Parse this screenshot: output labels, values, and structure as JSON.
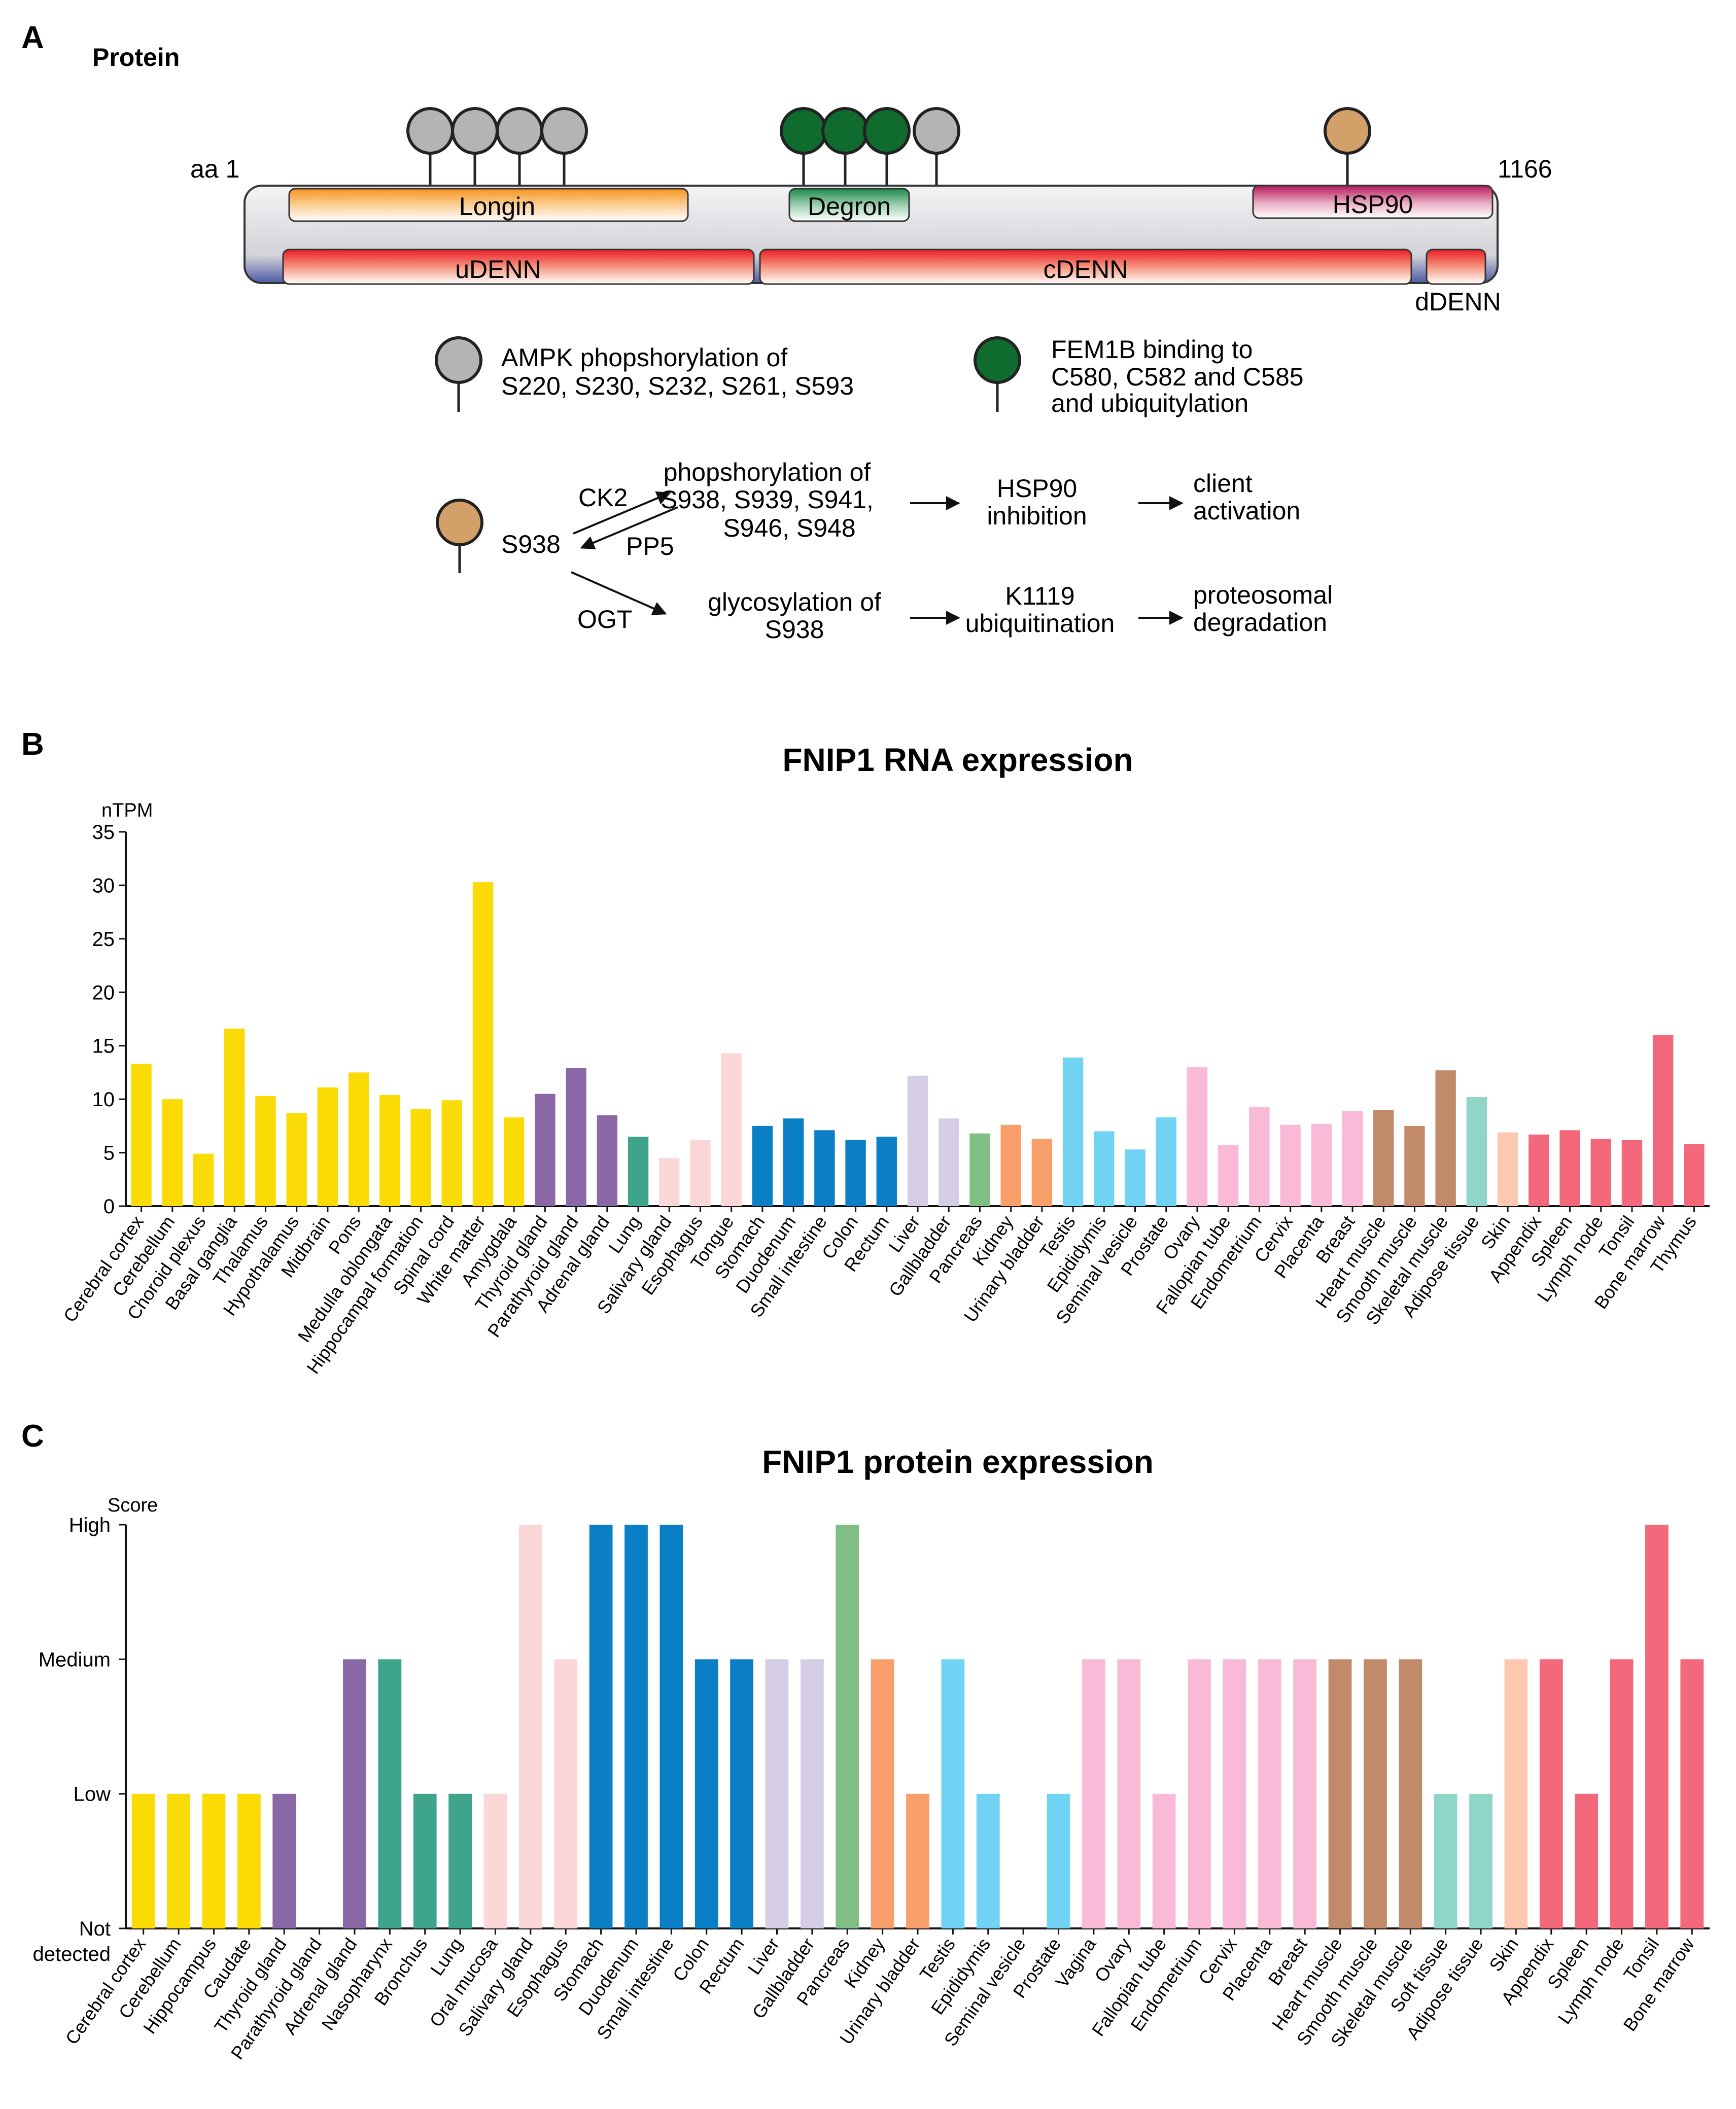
{
  "panelA": {
    "label": "A",
    "heading": "Protein",
    "aa_start": "aa 1",
    "aa_end": "1166",
    "domains": {
      "longin": "Longin",
      "degron": "Degron",
      "hsp90": "HSP90",
      "udenn": "uDENN",
      "cdenn": "cDENN",
      "ddenn": "dDENN"
    },
    "legend": {
      "ampk_1": "AMPK phopshorylation of",
      "ampk_2": "S220, S230, S232, S261, S593",
      "fem1b_1": "FEM1B binding to",
      "fem1b_2": "C580, C582 and C585",
      "fem1b_3": "and  ubiquitylation"
    },
    "pathway": {
      "site": "S938",
      "ck2": "CK2",
      "pp5": "PP5",
      "ogt": "OGT",
      "phos_1": "phopshorylation of",
      "phos_2": "S938, S939, S941,",
      "phos_3": "S946, S948",
      "hsp_1": "HSP90",
      "hsp_2": "inhibition",
      "client_1": "client",
      "client_2": "activation",
      "glyc_1": "glycosylation of",
      "glyc_2": "S938",
      "k1119_1": "K1119",
      "k1119_2": "ubiquitination",
      "prot_1": "proteosomal",
      "prot_2": "degradation"
    },
    "colors": {
      "ampk": "#b4b4b4",
      "fem1b": "#0f6b2e",
      "s938": "#d4a06a"
    }
  },
  "panelB": {
    "label": "B"
  },
  "panelC": {
    "label": "C"
  },
  "chart_data": [
    {
      "type": "bar",
      "title": "FNIP1 RNA expression",
      "ylabel": "nTPM",
      "xlabel": "",
      "ylim": [
        0,
        35
      ],
      "yticks": [
        0,
        5,
        10,
        15,
        20,
        25,
        30,
        35
      ],
      "categories": [
        "Cerebral cortex",
        "Cerebellum",
        "Choroid plexus",
        "Basal ganglia",
        "Thalamus",
        "Hypothalamus",
        "Midbrain",
        "Pons",
        "Medulla oblongata",
        "Hippocampal formation",
        "Spinal cord",
        "White matter",
        "Amygdala",
        "Thyroid gland",
        "Parathyroid gland",
        "Adrenal gland",
        "Lung",
        "Salivary gland",
        "Esophagus",
        "Tongue",
        "Stomach",
        "Duodenum",
        "Small intestine",
        "Colon",
        "Rectum",
        "Liver",
        "Gallbladder",
        "Pancreas",
        "Kidney",
        "Urinary bladder",
        "Testis",
        "Epididymis",
        "Seminal vesicle",
        "Prostate",
        "Ovary",
        "Fallopian tube",
        "Endometrium",
        "Cervix",
        "Placenta",
        "Breast",
        "Heart muscle",
        "Smooth muscle",
        "Skeletal muscle",
        "Adipose tissue",
        "Skin",
        "Appendix",
        "Spleen",
        "Lymph node",
        "Tonsil",
        "Bone marrow",
        "Thymus"
      ],
      "values": [
        13.3,
        10.0,
        4.9,
        16.6,
        10.3,
        8.7,
        11.1,
        12.5,
        10.4,
        9.1,
        9.9,
        30.3,
        8.3,
        10.5,
        12.9,
        8.5,
        6.5,
        4.5,
        6.2,
        14.3,
        7.5,
        8.2,
        7.1,
        6.2,
        6.5,
        12.2,
        8.2,
        6.8,
        7.6,
        6.3,
        13.9,
        7.0,
        5.3,
        8.3,
        13.0,
        5.7,
        9.3,
        7.6,
        7.7,
        8.9,
        9.0,
        7.5,
        12.7,
        10.2,
        6.9,
        6.7,
        7.1,
        6.3,
        6.2,
        16.0,
        5.8
      ],
      "colors": [
        "#fbdb05",
        "#fbdb05",
        "#fbdb05",
        "#fbdb05",
        "#fbdb05",
        "#fbdb05",
        "#fbdb05",
        "#fbdb05",
        "#fbdb05",
        "#fbdb05",
        "#fbdb05",
        "#fbdb05",
        "#fbdb05",
        "#8a68a8",
        "#8a68a8",
        "#8a68a8",
        "#3ea58c",
        "#fcd7d7",
        "#fcd7d7",
        "#fcd7d7",
        "#0a7fc6",
        "#0a7fc6",
        "#0a7fc6",
        "#0a7fc6",
        "#0a7fc6",
        "#d5cce6",
        "#d5cce6",
        "#7fbf85",
        "#f99f6a",
        "#f99f6a",
        "#71d3f4",
        "#71d3f4",
        "#71d3f4",
        "#71d3f4",
        "#f9bad8",
        "#f9bad8",
        "#f9bad8",
        "#f9bad8",
        "#f9bad8",
        "#f9bad8",
        "#c18b6a",
        "#c18b6a",
        "#c18b6a",
        "#8fd6c9",
        "#fcc9b0",
        "#f3687b",
        "#f3687b",
        "#f3687b",
        "#f3687b",
        "#f3687b",
        "#f3687b"
      ]
    },
    {
      "type": "bar",
      "title": "FNIP1 protein expression",
      "ylabel": "Score",
      "xlabel": "",
      "ylim": [
        0,
        3
      ],
      "ytick_labels": [
        "Not detected",
        "Low",
        "Medium",
        "High"
      ],
      "ytick_line1": [
        "Not",
        "Low",
        "Medium",
        "High"
      ],
      "ytick_line2": [
        "detected",
        "",
        "",
        ""
      ],
      "categories": [
        "Cerebral cortex",
        "Cerebellum",
        "Hippocampus",
        "Caudate",
        "Thyroid gland",
        "Parathyroid gland",
        "Adrenal gland",
        "Nasopharynx",
        "Bronchus",
        "Lung",
        "Oral mucosa",
        "Salivary gland",
        "Esophagus",
        "Stomach",
        "Duodenum",
        "Small intestine",
        "Colon",
        "Rectum",
        "Liver",
        "Gallbladder",
        "Pancreas",
        "Kidney",
        "Urinary bladder",
        "Testis",
        "Epididymis",
        "Seminal vesicle",
        "Prostate",
        "Vagina",
        "Ovary",
        "Fallopian tube",
        "Endometrium",
        "Cervix",
        "Placenta",
        "Breast",
        "Heart muscle",
        "Smooth muscle",
        "Skeletal muscle",
        "Soft tissue",
        "Adipose tissue",
        "Skin",
        "Appendix",
        "Spleen",
        "Lymph node",
        "Tonsil",
        "Bone marrow"
      ],
      "values": [
        1,
        1,
        1,
        1,
        1,
        0,
        2,
        2,
        1,
        1,
        1,
        3,
        2,
        3,
        3,
        3,
        2,
        2,
        2,
        2,
        3,
        2,
        1,
        2,
        1,
        0,
        1,
        2,
        2,
        1,
        2,
        2,
        2,
        2,
        2,
        2,
        2,
        1,
        1,
        2,
        2,
        1,
        2,
        3,
        2
      ],
      "colors": [
        "#fbdb05",
        "#fbdb05",
        "#fbdb05",
        "#fbdb05",
        "#8a68a8",
        "#8a68a8",
        "#8a68a8",
        "#3ea58c",
        "#3ea58c",
        "#3ea58c",
        "#fcd7d7",
        "#fcd7d7",
        "#fcd7d7",
        "#0a7fc6",
        "#0a7fc6",
        "#0a7fc6",
        "#0a7fc6",
        "#0a7fc6",
        "#d5cce6",
        "#d5cce6",
        "#7fbf85",
        "#f99f6a",
        "#f99f6a",
        "#71d3f4",
        "#71d3f4",
        "#71d3f4",
        "#71d3f4",
        "#f9bad8",
        "#f9bad8",
        "#f9bad8",
        "#f9bad8",
        "#f9bad8",
        "#f9bad8",
        "#f9bad8",
        "#c18b6a",
        "#c18b6a",
        "#c18b6a",
        "#8fd6c9",
        "#8fd6c9",
        "#fcc9b0",
        "#f3687b",
        "#f3687b",
        "#f3687b",
        "#f3687b",
        "#f3687b"
      ]
    }
  ]
}
